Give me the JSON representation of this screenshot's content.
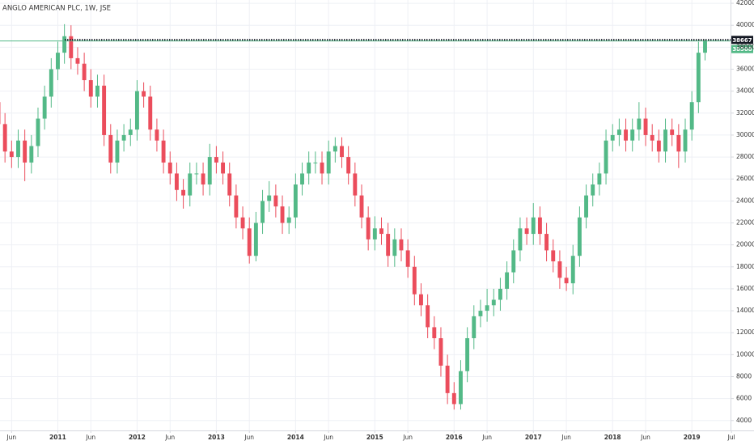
{
  "chart_data": {
    "type": "candlestick",
    "title": "ANGLO AMERICAN PLC, 1W, JSE",
    "x": [
      "2010-04",
      "2010-05",
      "2010-06",
      "2010-07",
      "2010-08",
      "2010-09",
      "2010-10",
      "2010-11",
      "2010-12",
      "2011-01",
      "2011-02",
      "2011-03",
      "2011-04",
      "2011-05",
      "2011-06",
      "2011-07",
      "2011-08",
      "2011-09",
      "2011-10",
      "2011-11",
      "2011-12",
      "2012-01",
      "2012-02",
      "2012-03",
      "2012-04",
      "2012-05",
      "2012-06",
      "2012-07",
      "2012-08",
      "2012-09",
      "2012-10",
      "2012-11",
      "2012-12",
      "2013-01",
      "2013-02",
      "2013-03",
      "2013-04",
      "2013-05",
      "2013-06",
      "2013-07",
      "2013-08",
      "2013-09",
      "2013-10",
      "2013-11",
      "2013-12",
      "2014-01",
      "2014-02",
      "2014-03",
      "2014-04",
      "2014-05",
      "2014-06",
      "2014-07",
      "2014-08",
      "2014-09",
      "2014-10",
      "2014-11",
      "2014-12",
      "2015-01",
      "2015-02",
      "2015-03",
      "2015-04",
      "2015-05",
      "2015-06",
      "2015-07",
      "2015-08",
      "2015-09",
      "2015-10",
      "2015-11",
      "2015-12",
      "2016-01",
      "2016-02",
      "2016-03",
      "2016-04",
      "2016-05",
      "2016-06",
      "2016-07",
      "2016-08",
      "2016-09",
      "2016-10",
      "2016-11",
      "2016-12",
      "2017-01",
      "2017-02",
      "2017-03",
      "2017-04",
      "2017-05",
      "2017-06",
      "2017-07",
      "2017-08",
      "2017-09",
      "2017-10",
      "2017-11",
      "2017-12",
      "2018-01",
      "2018-02",
      "2018-03",
      "2018-04",
      "2018-05",
      "2018-06",
      "2018-07",
      "2018-08",
      "2018-09",
      "2018-10",
      "2018-11",
      "2018-12",
      "2019-01",
      "2019-02",
      "2019-03"
    ],
    "open": [
      33000,
      31000,
      28500,
      28000,
      29500,
      27500,
      29000,
      31500,
      33500,
      36000,
      37500,
      39000,
      37000,
      36500,
      35000,
      33500,
      34500,
      30000,
      27500,
      29500,
      30000,
      30500,
      34000,
      33500,
      30500,
      29500,
      27500,
      26500,
      25000,
      24500,
      26500,
      26500,
      25500,
      28000,
      27500,
      26500,
      24500,
      22500,
      21500,
      19000,
      22000,
      24000,
      24500,
      23500,
      22000,
      22500,
      25500,
      26500,
      27500,
      27500,
      26500,
      28500,
      29000,
      28000,
      26500,
      24500,
      22500,
      20500,
      21500,
      21000,
      19000,
      20500,
      19500,
      18000,
      15500,
      14500,
      12500,
      11500,
      9000,
      6500,
      5500,
      8500,
      11500,
      13500,
      14000,
      14500,
      15000,
      16000,
      17500,
      19500,
      21500,
      21000,
      22500,
      21000,
      19500,
      18500,
      17000,
      16500,
      19000,
      22500,
      24500,
      25500,
      26500,
      29500,
      30000,
      30500,
      29500,
      30500,
      31500,
      30000,
      29500,
      28500,
      30500,
      30000,
      28500,
      30500,
      33000,
      37500
    ],
    "high": [
      34000,
      32000,
      29500,
      30500,
      30500,
      30000,
      32500,
      34500,
      37000,
      38500,
      40100,
      40000,
      38000,
      37500,
      36000,
      35500,
      35500,
      31000,
      30500,
      31000,
      31500,
      35000,
      34800,
      34500,
      31500,
      30500,
      28500,
      27500,
      26000,
      27500,
      27500,
      27500,
      29200,
      29000,
      28500,
      27500,
      25500,
      23500,
      22500,
      23000,
      25000,
      25800,
      25500,
      24500,
      23500,
      26500,
      27500,
      28500,
      28500,
      28500,
      29500,
      29800,
      29800,
      29000,
      27500,
      25500,
      23500,
      22600,
      22500,
      22000,
      21500,
      21500,
      20500,
      19000,
      16500,
      15500,
      13500,
      12500,
      10000,
      7500,
      9500,
      12500,
      14500,
      15000,
      16000,
      16000,
      17000,
      18500,
      20500,
      22500,
      22500,
      23800,
      23500,
      22000,
      20500,
      19500,
      18000,
      20000,
      23500,
      25500,
      26500,
      27500,
      30500,
      31000,
      31500,
      31500,
      31500,
      33000,
      32500,
      31000,
      30500,
      31500,
      31500,
      31000,
      31500,
      34000,
      38500,
      38667
    ],
    "low": [
      30000,
      27500,
      27000,
      27000,
      25800,
      26500,
      28000,
      30500,
      32500,
      35000,
      36500,
      36000,
      35500,
      34000,
      32500,
      32500,
      29000,
      26500,
      26500,
      28500,
      29000,
      29500,
      32500,
      29500,
      28500,
      26500,
      25500,
      24000,
      23300,
      23500,
      25500,
      24500,
      24500,
      26500,
      25500,
      23500,
      21500,
      20500,
      18300,
      18500,
      21000,
      23000,
      22500,
      21000,
      21000,
      21500,
      24500,
      25500,
      26500,
      25500,
      25500,
      27500,
      27000,
      25500,
      23500,
      21500,
      19500,
      19500,
      20000,
      18000,
      18000,
      18500,
      17000,
      14500,
      13500,
      11500,
      10500,
      8000,
      5500,
      5000,
      5000,
      7500,
      10500,
      12500,
      13000,
      13500,
      14000,
      15000,
      16500,
      18500,
      20000,
      20000,
      20000,
      18500,
      17500,
      16000,
      15800,
      15500,
      18000,
      21500,
      23500,
      24500,
      25500,
      28500,
      29000,
      28500,
      28500,
      29500,
      29000,
      28500,
      27500,
      27500,
      29000,
      27000,
      27500,
      29500,
      32000,
      36800
    ],
    "close": [
      31000,
      28500,
      28000,
      29500,
      27500,
      29000,
      31500,
      33500,
      36000,
      37500,
      39000,
      37000,
      36500,
      35000,
      33500,
      34500,
      30000,
      27500,
      29500,
      30000,
      30500,
      34000,
      33500,
      30500,
      29500,
      27500,
      26500,
      25000,
      24500,
      26500,
      26500,
      25500,
      28000,
      27500,
      26500,
      24500,
      22500,
      21500,
      19000,
      22000,
      24000,
      24500,
      23500,
      22000,
      22500,
      25500,
      26500,
      27500,
      27500,
      26500,
      28500,
      29000,
      28000,
      26500,
      24500,
      22500,
      20500,
      21500,
      21000,
      19000,
      20500,
      19500,
      18000,
      15500,
      14500,
      12500,
      11500,
      9000,
      6500,
      5500,
      8500,
      11500,
      13500,
      14000,
      14500,
      15000,
      16000,
      17500,
      19500,
      21500,
      21000,
      22500,
      21000,
      19500,
      18500,
      17000,
      16500,
      19000,
      22500,
      24500,
      25500,
      26500,
      29500,
      30000,
      30500,
      29500,
      30500,
      31500,
      30000,
      29500,
      28500,
      30500,
      30000,
      28500,
      30500,
      33000,
      37500,
      38568
    ],
    "up_color": "#53b987",
    "down_color": "#eb4d5c",
    "xlim": [
      "2010-04",
      "2019-06"
    ],
    "xticks": [
      {
        "value": "2010-06",
        "label": "Jun"
      },
      {
        "value": "2011-01",
        "label": "2011"
      },
      {
        "value": "2011-06",
        "label": "Jun"
      },
      {
        "value": "2012-01",
        "label": "2012"
      },
      {
        "value": "2012-06",
        "label": "Jun"
      },
      {
        "value": "2013-01",
        "label": "2013"
      },
      {
        "value": "2013-06",
        "label": "Jun"
      },
      {
        "value": "2014-01",
        "label": "2014"
      },
      {
        "value": "2014-06",
        "label": "Jun"
      },
      {
        "value": "2015-01",
        "label": "2015"
      },
      {
        "value": "2015-06",
        "label": "Jun"
      },
      {
        "value": "2016-01",
        "label": "2016"
      },
      {
        "value": "2016-06",
        "label": "Jun"
      },
      {
        "value": "2017-01",
        "label": "2017"
      },
      {
        "value": "2017-06",
        "label": "Jun"
      },
      {
        "value": "2018-01",
        "label": "2018"
      },
      {
        "value": "2018-06",
        "label": "Jun"
      },
      {
        "value": "2019-01",
        "label": "2019"
      },
      {
        "value": "2019-07",
        "label": "Jul"
      }
    ],
    "ylim": [
      3100,
      42300
    ],
    "yticks": [
      4000,
      6000,
      8000,
      10000,
      12000,
      14000,
      16000,
      18000,
      20000,
      22000,
      24000,
      26000,
      28000,
      30000,
      32000,
      34000,
      36000,
      38000,
      40000,
      42000
    ],
    "grid": true,
    "high_line": {
      "value": 38667,
      "color": "#131722"
    },
    "last_price": {
      "value": 38568,
      "color": "#53b987"
    }
  }
}
